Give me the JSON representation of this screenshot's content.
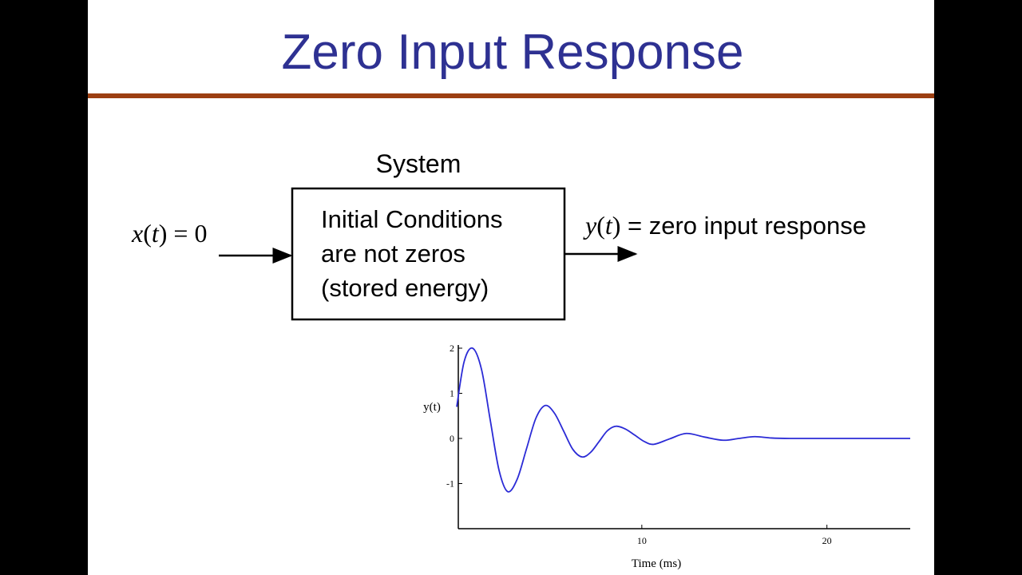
{
  "slide": {
    "title": "Zero Input Response"
  },
  "diagram": {
    "system_label": "System",
    "box_lines": [
      "Initial Conditions",
      "are not zeros",
      "(stored energy)"
    ],
    "input_label": [
      "x",
      "(",
      "t",
      ") = 0"
    ],
    "output_label": [
      "y",
      "(",
      "t",
      ")",
      " = zero input response"
    ]
  },
  "chart_data": {
    "type": "line",
    "x_label": "Time (ms)",
    "y_label": "y(t)",
    "xlim": [
      0,
      24.5
    ],
    "ylim": [
      -2,
      2
    ],
    "xticks": [
      10,
      20
    ],
    "yticks": [
      -1,
      0,
      1,
      2
    ],
    "x": [
      0,
      0.4,
      0.86,
      1.34,
      1.81,
      2.29,
      2.76,
      3.27,
      3.77,
      4.28,
      4.78,
      5.28,
      5.78,
      6.27,
      6.77,
      7.23,
      7.69,
      8.14,
      8.6,
      9.11,
      9.63,
      10.14,
      10.65,
      11.5,
      12.4,
      13.4,
      14.4,
      15.25,
      16.1,
      17,
      18,
      20,
      22,
      24.5
    ],
    "series": [
      {
        "color": "#2b2bd6",
        "values": [
          0.7,
          1.7,
          2.0,
          1.53,
          0.41,
          -0.71,
          -1.18,
          -0.9,
          -0.23,
          0.45,
          0.73,
          0.56,
          0.16,
          -0.24,
          -0.41,
          -0.31,
          -0.07,
          0.17,
          0.27,
          0.21,
          0.07,
          -0.07,
          -0.13,
          -0.01,
          0.11,
          0.03,
          -0.04,
          0,
          0.04,
          0.01,
          0,
          0,
          0,
          0
        ]
      }
    ]
  }
}
